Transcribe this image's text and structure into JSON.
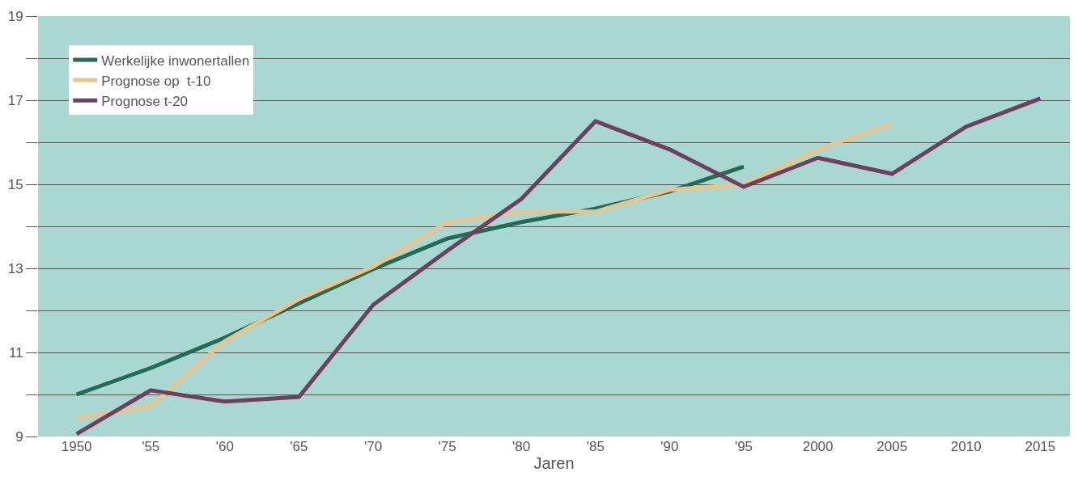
{
  "chart_data": {
    "type": "line",
    "xlabel": "Jaren",
    "x": [
      1950,
      1955,
      1960,
      1965,
      1970,
      1975,
      1980,
      1985,
      1990,
      1995,
      2000,
      2005,
      2010,
      2015
    ],
    "xlim": [
      1947.4,
      2017
    ],
    "xticks": [
      {
        "value": 1950,
        "label": "1950"
      },
      {
        "value": 1955,
        "label": "'55"
      },
      {
        "value": 1960,
        "label": "'60"
      },
      {
        "value": 1965,
        "label": "'65"
      },
      {
        "value": 1970,
        "label": "'70"
      },
      {
        "value": 1975,
        "label": "'75"
      },
      {
        "value": 1980,
        "label": "'80"
      },
      {
        "value": 1985,
        "label": "'85"
      },
      {
        "value": 1990,
        "label": "'90"
      },
      {
        "value": 1995,
        "label": "'95"
      },
      {
        "value": 2000,
        "label": "2000"
      },
      {
        "value": 2005,
        "label": "2005"
      },
      {
        "value": 2010,
        "label": "2010"
      },
      {
        "value": 2015,
        "label": "2015"
      }
    ],
    "ylim": [
      9,
      19
    ],
    "yticks": [
      9,
      {
        "value": 10,
        "label": null
      },
      11,
      {
        "value": 12,
        "label": null
      },
      13,
      {
        "value": 14,
        "label": null
      },
      15,
      {
        "value": 16,
        "label": null
      },
      17,
      {
        "value": 18,
        "label": null
      },
      19
    ],
    "grid": "y",
    "legend": "top left",
    "line_style": "solid",
    "marker": "none",
    "series": [
      {
        "name": "Werkelijke inwonertallen",
        "color": "#226b55",
        "values": [
          10.0,
          10.63,
          11.35,
          12.17,
          12.98,
          13.71,
          14.1,
          14.42,
          14.83,
          15.42,
          null,
          null,
          null,
          null
        ]
      },
      {
        "name": "Prognose op  t-10",
        "color": "#e8c48f",
        "values": [
          9.44,
          9.73,
          11.27,
          12.27,
          13.04,
          14.1,
          14.35,
          14.35,
          14.87,
          15.0,
          15.83,
          16.44,
          null,
          null
        ]
      },
      {
        "name": "Prognose t-20",
        "color": "#6e3f5e",
        "values": [
          9.06,
          10.1,
          9.83,
          9.94,
          12.13,
          13.42,
          14.65,
          16.5,
          15.83,
          14.94,
          15.63,
          15.25,
          16.37,
          17.04
        ]
      }
    ]
  }
}
